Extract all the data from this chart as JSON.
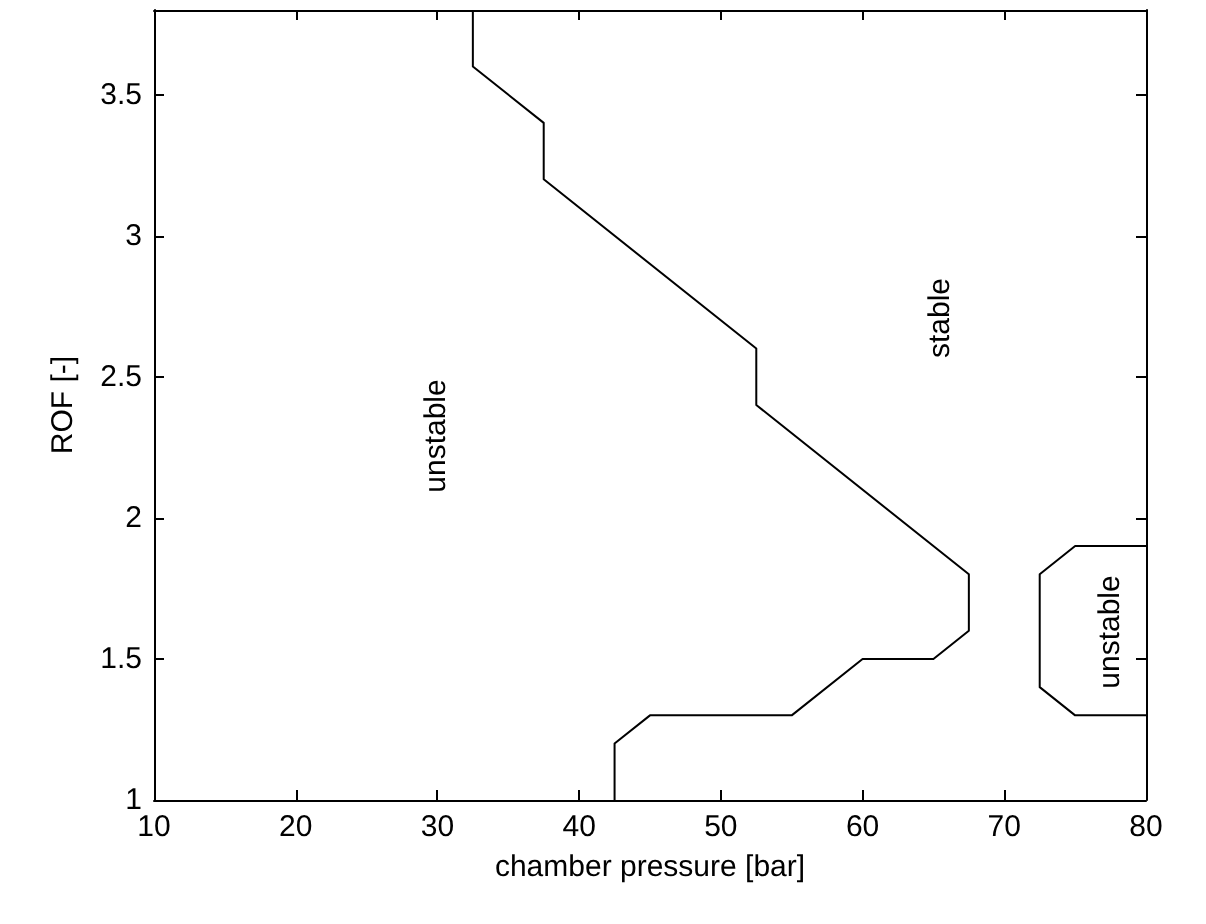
{
  "chart_data": {
    "type": "line",
    "xlabel": "chamber pressure [bar]",
    "ylabel": "ROF [-]",
    "xlim": [
      10,
      80
    ],
    "ylim": [
      1,
      3.8
    ],
    "xticks": [
      10,
      20,
      30,
      40,
      50,
      60,
      70,
      80
    ],
    "yticks": [
      1,
      1.5,
      2,
      2.5,
      3,
      3.5
    ],
    "grid": false,
    "marker": "none",
    "line_style": "solid",
    "series": [
      {
        "color": "#000000",
        "x": [
          42.5,
          42.5,
          45,
          55,
          60,
          65,
          67.5,
          67.5,
          52.5,
          52.5,
          37.5,
          37.5,
          32.5,
          32.5
        ],
        "values": [
          1,
          1.2,
          1.3,
          1.3,
          1.5,
          1.5,
          1.6,
          1.8,
          2.4,
          2.6,
          3.2,
          3.4,
          3.6,
          3.8
        ]
      },
      {
        "color": "#000000",
        "x": [
          80,
          75,
          72.5,
          72.5,
          75,
          80
        ],
        "values": [
          1.9,
          1.9,
          1.8,
          1.4,
          1.3,
          1.3
        ]
      }
    ],
    "annotations": [
      "unstable",
      "stable",
      "unstable"
    ]
  }
}
